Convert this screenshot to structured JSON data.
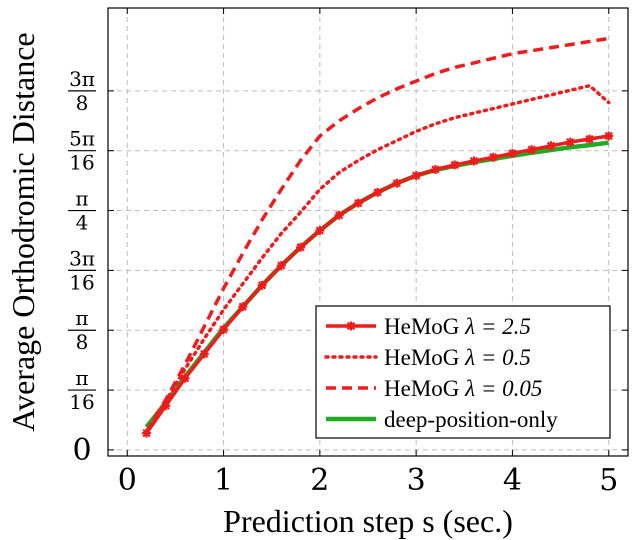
{
  "chart_data": {
    "type": "line",
    "title": "",
    "xlabel": "Prediction step s (sec.)",
    "ylabel": "Average Orthodromic Distance",
    "xlim": [
      -0.2,
      5.2
    ],
    "ylim": [
      -0.02,
      1.45
    ],
    "xticks": [
      {
        "value": 0,
        "label": "0"
      },
      {
        "value": 1,
        "label": "1"
      },
      {
        "value": 2,
        "label": "2"
      },
      {
        "value": 3,
        "label": "3"
      },
      {
        "value": 4,
        "label": "4"
      },
      {
        "value": 5,
        "label": "5"
      }
    ],
    "yticks": [
      {
        "value": 0,
        "num": "",
        "den": "",
        "plain": "0"
      },
      {
        "value": 0.19635,
        "num": "π",
        "den": "16",
        "plain": ""
      },
      {
        "value": 0.3927,
        "num": "π",
        "den": "8",
        "plain": ""
      },
      {
        "value": 0.58905,
        "num": "3π",
        "den": "16",
        "plain": ""
      },
      {
        "value": 0.7854,
        "num": "π",
        "den": "4",
        "plain": ""
      },
      {
        "value": 0.98175,
        "num": "5π",
        "den": "16",
        "plain": ""
      },
      {
        "value": 1.1781,
        "num": "3π",
        "den": "8",
        "plain": ""
      }
    ],
    "grid": true,
    "legend_position": "bottom-right",
    "x": [
      0.2,
      0.4,
      0.6,
      0.8,
      1.0,
      1.2,
      1.4,
      1.6,
      1.8,
      2.0,
      2.2,
      2.4,
      2.6,
      2.8,
      3.0,
      3.2,
      3.4,
      3.6,
      3.8,
      4.0,
      4.2,
      4.4,
      4.6,
      4.8,
      5.0
    ],
    "series": [
      {
        "name": "HeMoG λ = 2.5",
        "legend_main": "HeMoG ",
        "legend_lambda": "λ = 2.5",
        "color": "#ee1c1c",
        "style": "solid-marker",
        "values": [
          0.055,
          0.145,
          0.235,
          0.315,
          0.395,
          0.47,
          0.54,
          0.605,
          0.665,
          0.72,
          0.77,
          0.81,
          0.845,
          0.875,
          0.9,
          0.92,
          0.935,
          0.948,
          0.96,
          0.973,
          0.985,
          0.998,
          1.01,
          1.02,
          1.03
        ]
      },
      {
        "name": "HeMoG λ = 0.5",
        "legend_main": "HeMoG ",
        "legend_lambda": "λ = 0.5",
        "color": "#ee1c1c",
        "style": "dotted",
        "values": [
          0.06,
          0.16,
          0.265,
          0.365,
          0.46,
          0.545,
          0.63,
          0.71,
          0.78,
          0.855,
          0.91,
          0.95,
          0.985,
          1.015,
          1.045,
          1.07,
          1.09,
          1.105,
          1.12,
          1.135,
          1.15,
          1.165,
          1.18,
          1.195,
          1.14
        ]
      },
      {
        "name": "HeMoG λ = 0.05",
        "legend_main": "HeMoG ",
        "legend_lambda": "λ = 0.05",
        "color": "#ee1c1c",
        "style": "dashed",
        "values": [
          0.06,
          0.165,
          0.28,
          0.405,
          0.53,
          0.645,
          0.755,
          0.855,
          0.95,
          1.03,
          1.08,
          1.12,
          1.155,
          1.185,
          1.21,
          1.235,
          1.255,
          1.27,
          1.285,
          1.3,
          1.31,
          1.32,
          1.33,
          1.34,
          1.35
        ]
      },
      {
        "name": "deep-position-only",
        "legend_main": "deep-position-only",
        "legend_lambda": "",
        "color": "#22aa22",
        "style": "solid",
        "values": [
          0.075,
          0.155,
          0.24,
          0.32,
          0.4,
          0.47,
          0.54,
          0.605,
          0.665,
          0.72,
          0.77,
          0.81,
          0.845,
          0.875,
          0.9,
          0.918,
          0.932,
          0.944,
          0.955,
          0.965,
          0.975,
          0.984,
          0.993,
          1.0,
          1.008
        ]
      }
    ]
  }
}
